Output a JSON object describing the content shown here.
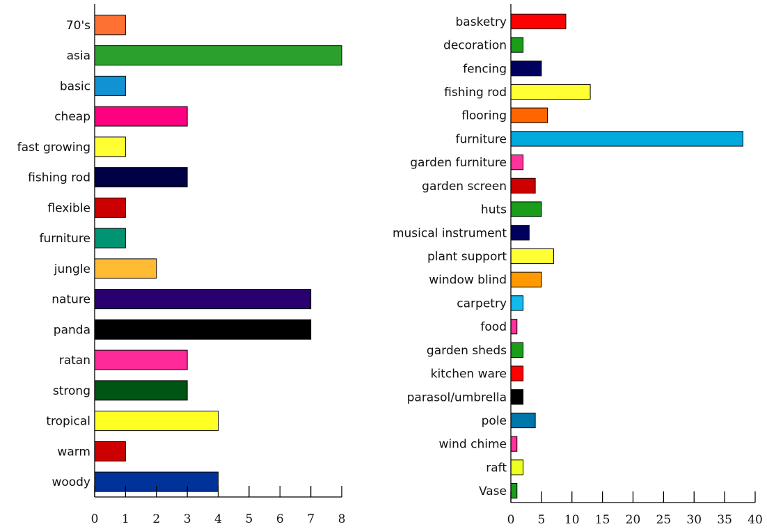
{
  "chart_data": [
    {
      "type": "bar",
      "orientation": "horizontal",
      "categories": [
        "70's",
        "asia",
        "basic",
        "cheap",
        "fast growing",
        "fishing rod",
        "flexible",
        "furniture",
        "jungle",
        "nature",
        "panda",
        "ratan",
        "strong",
        "tropical",
        "warm",
        "woody"
      ],
      "values": [
        1,
        8,
        1,
        3,
        1,
        3,
        1,
        1,
        2,
        7,
        7,
        3,
        3,
        4,
        1,
        4
      ],
      "colors": [
        "#ff7033",
        "#2ca02c",
        "#1192d3",
        "#ff0080",
        "#ffff33",
        "#000044",
        "#cc0000",
        "#009473",
        "#ffbb33",
        "#2a0070",
        "#000000",
        "#ff2a9a",
        "#005515",
        "#ffff22",
        "#cc0000",
        "#003399"
      ],
      "xlim": [
        0,
        8
      ],
      "xticks": [
        "0",
        "1",
        "2",
        "3",
        "4",
        "5",
        "6",
        "7",
        "8"
      ],
      "title": "",
      "xlabel": "",
      "ylabel": "",
      "grid": false
    },
    {
      "type": "bar",
      "orientation": "horizontal",
      "categories": [
        "basketry",
        "decoration",
        "fencing",
        "fishing rod",
        "flooring",
        "furniture",
        "garden furniture",
        "garden screen",
        "huts",
        "musical instrument",
        "plant support",
        "window blind",
        "carpetry",
        "food",
        "garden sheds",
        "kitchen ware",
        "parasol/umbrella",
        "pole",
        "wind chime",
        "raft",
        "Vase"
      ],
      "values": [
        9,
        2,
        5,
        13,
        6,
        38,
        2,
        4,
        5,
        3,
        7,
        5,
        2,
        1,
        2,
        2,
        2,
        4,
        1,
        2,
        1
      ],
      "colors": [
        "#ff0000",
        "#1a9e1a",
        "#00005e",
        "#ffff33",
        "#ff6600",
        "#00aadd",
        "#ff3399",
        "#cc0000",
        "#1a9e1a",
        "#00005e",
        "#ffff33",
        "#ff9900",
        "#11bbee",
        "#ff3399",
        "#1a9e1a",
        "#ff0000",
        "#000000",
        "#0077aa",
        "#ff3399",
        "#eeff22",
        "#1a9e1a"
      ],
      "xlim": [
        0,
        40
      ],
      "xticks": [
        "0",
        "5",
        "10",
        "15",
        "20",
        "25",
        "30",
        "35",
        "40"
      ],
      "title": "",
      "xlabel": "",
      "ylabel": "",
      "grid": false
    }
  ]
}
